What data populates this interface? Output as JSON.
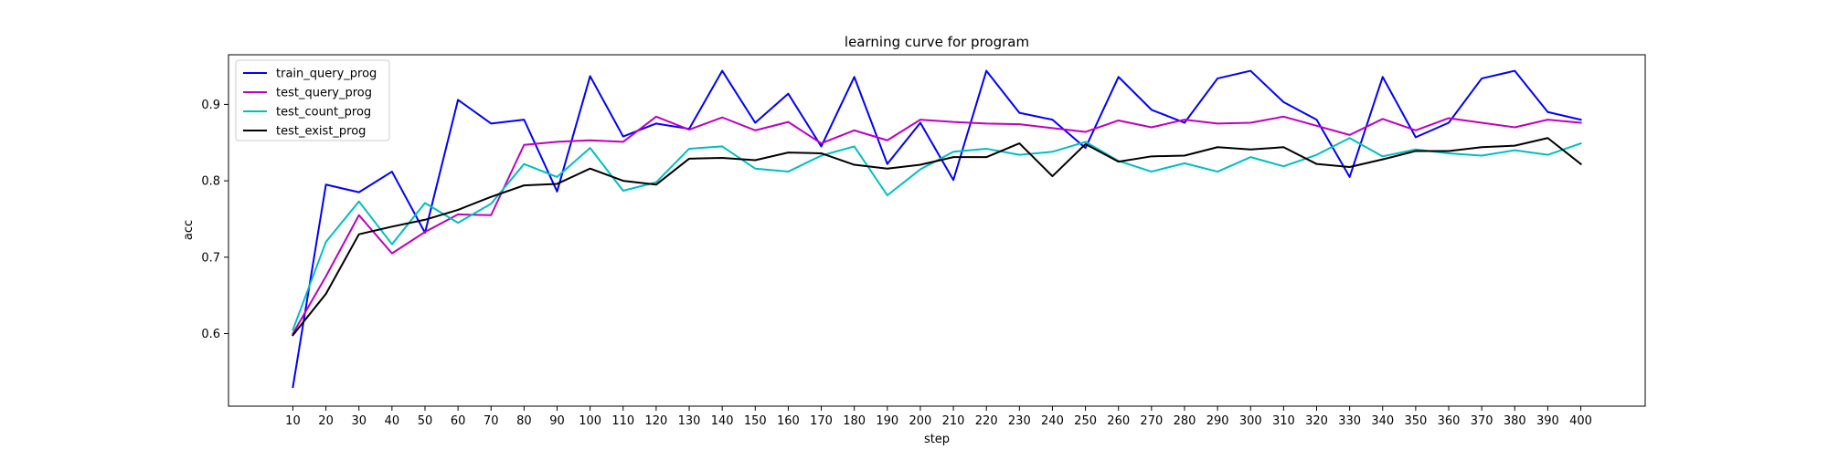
{
  "chart_data": {
    "type": "line",
    "title": "learning curve for program",
    "xlabel": "step",
    "ylabel": "acc",
    "xlim": [
      -9.5,
      419.5
    ],
    "ylim": [
      0.505,
      0.965
    ],
    "xticks": [
      10,
      20,
      30,
      40,
      50,
      60,
      70,
      80,
      90,
      100,
      110,
      120,
      130,
      140,
      150,
      160,
      170,
      180,
      190,
      200,
      210,
      220,
      230,
      240,
      250,
      260,
      270,
      280,
      290,
      300,
      310,
      320,
      330,
      340,
      350,
      360,
      370,
      380,
      390,
      400
    ],
    "yticks": [
      0.6,
      0.7,
      0.8,
      0.9
    ],
    "ytick_labels": [
      "0.6",
      "0.7",
      "0.8",
      "0.9"
    ],
    "grid": false,
    "legend_position": "top-left",
    "x": [
      10,
      20,
      30,
      40,
      50,
      60,
      70,
      80,
      90,
      100,
      110,
      120,
      130,
      140,
      150,
      160,
      170,
      180,
      190,
      200,
      210,
      220,
      230,
      240,
      250,
      260,
      270,
      280,
      290,
      300,
      310,
      320,
      330,
      340,
      350,
      360,
      370,
      380,
      390,
      400
    ],
    "series": [
      {
        "name": "train_query_prog",
        "color": "#0000ff",
        "values": [
          0.53,
          0.795,
          0.785,
          0.812,
          0.732,
          0.906,
          0.875,
          0.88,
          0.786,
          0.937,
          0.858,
          0.875,
          0.868,
          0.944,
          0.876,
          0.914,
          0.845,
          0.936,
          0.822,
          0.876,
          0.801,
          0.944,
          0.889,
          0.88,
          0.843,
          0.936,
          0.893,
          0.876,
          0.934,
          0.944,
          0.903,
          0.88,
          0.805,
          0.936,
          0.857,
          0.876,
          0.934,
          0.944,
          0.89,
          0.88
        ]
      },
      {
        "name": "test_query_prog",
        "color": "#bf00bf",
        "values": [
          0.6,
          0.675,
          0.755,
          0.705,
          0.733,
          0.756,
          0.755,
          0.847,
          0.851,
          0.853,
          0.851,
          0.884,
          0.867,
          0.883,
          0.866,
          0.877,
          0.849,
          0.866,
          0.853,
          0.88,
          0.877,
          0.875,
          0.874,
          0.869,
          0.864,
          0.879,
          0.87,
          0.88,
          0.875,
          0.876,
          0.884,
          0.872,
          0.86,
          0.881,
          0.866,
          0.882,
          0.876,
          0.87,
          0.88,
          0.876
        ]
      },
      {
        "name": "test_count_prog",
        "color": "#00bfbf",
        "values": [
          0.605,
          0.72,
          0.773,
          0.717,
          0.771,
          0.745,
          0.77,
          0.822,
          0.805,
          0.843,
          0.787,
          0.798,
          0.842,
          0.845,
          0.816,
          0.812,
          0.833,
          0.845,
          0.781,
          0.815,
          0.838,
          0.842,
          0.834,
          0.838,
          0.851,
          0.826,
          0.812,
          0.823,
          0.812,
          0.831,
          0.819,
          0.834,
          0.856,
          0.832,
          0.841,
          0.836,
          0.833,
          0.84,
          0.834,
          0.849
        ]
      },
      {
        "name": "test_exist_prog",
        "color": "#000000",
        "values": [
          0.598,
          0.652,
          0.73,
          0.74,
          0.749,
          0.762,
          0.779,
          0.794,
          0.796,
          0.816,
          0.8,
          0.795,
          0.829,
          0.83,
          0.827,
          0.837,
          0.836,
          0.821,
          0.816,
          0.821,
          0.831,
          0.831,
          0.849,
          0.806,
          0.848,
          0.825,
          0.832,
          0.833,
          0.844,
          0.841,
          0.844,
          0.822,
          0.818,
          0.828,
          0.839,
          0.839,
          0.844,
          0.846,
          0.856,
          0.822
        ]
      }
    ]
  }
}
